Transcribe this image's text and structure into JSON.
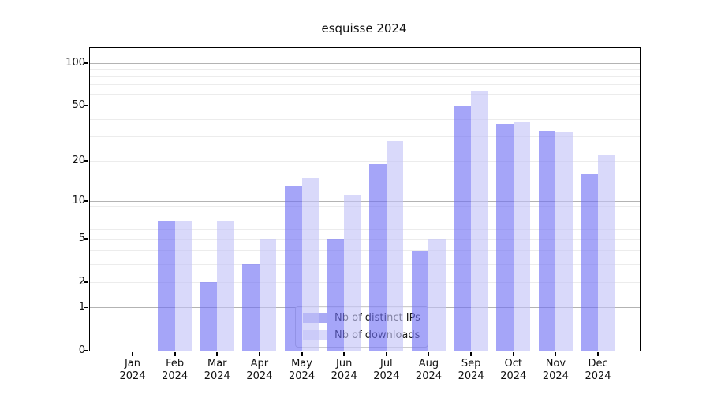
{
  "title": "esquisse 2024",
  "chart_data": {
    "type": "bar",
    "title": "esquisse 2024",
    "xlabel": "",
    "ylabel": "",
    "yscale": "log1p",
    "ylim": [
      0,
      127
    ],
    "y_ticks_labeled": [
      100,
      50,
      20,
      10,
      5,
      2,
      1,
      0
    ],
    "y_gridlines_major": [
      1,
      10,
      100
    ],
    "y_gridlines_minor": [
      2,
      3,
      4,
      5,
      6,
      7,
      8,
      9,
      20,
      30,
      40,
      50,
      60,
      70,
      80,
      90
    ],
    "categories": [
      "Jan 2024",
      "Feb 2024",
      "Mar 2024",
      "Apr 2024",
      "May 2024",
      "Jun 2024",
      "Jul 2024",
      "Aug 2024",
      "Sep 2024",
      "Oct 2024",
      "Nov 2024",
      "Dec 2024"
    ],
    "month_labels": [
      "Jan",
      "Feb",
      "Mar",
      "Apr",
      "May",
      "Jun",
      "Jul",
      "Aug",
      "Sep",
      "Oct",
      "Nov",
      "Dec"
    ],
    "year_label": "2024",
    "series": [
      {
        "name": "Nb of distinct IPs",
        "color": "rgba(110,110,243,0.62)",
        "legend_color": "#a9a9f4",
        "values": [
          0,
          7,
          2,
          3,
          13,
          5,
          19,
          4,
          50,
          37,
          33,
          16
        ]
      },
      {
        "name": "Nb of downloads",
        "color": "rgba(193,193,247,0.62)",
        "legend_color": "#dadafb",
        "values": [
          0,
          7,
          7,
          5,
          15,
          11,
          28,
          5,
          63,
          38,
          32,
          22
        ]
      }
    ],
    "legend_position": "lower-center",
    "grid": "on"
  },
  "colors": {
    "background": "#ffffff",
    "spine": "#000000",
    "grid_major": "#b3b3b3",
    "grid_minor": "#ececec",
    "text": "#111111"
  }
}
